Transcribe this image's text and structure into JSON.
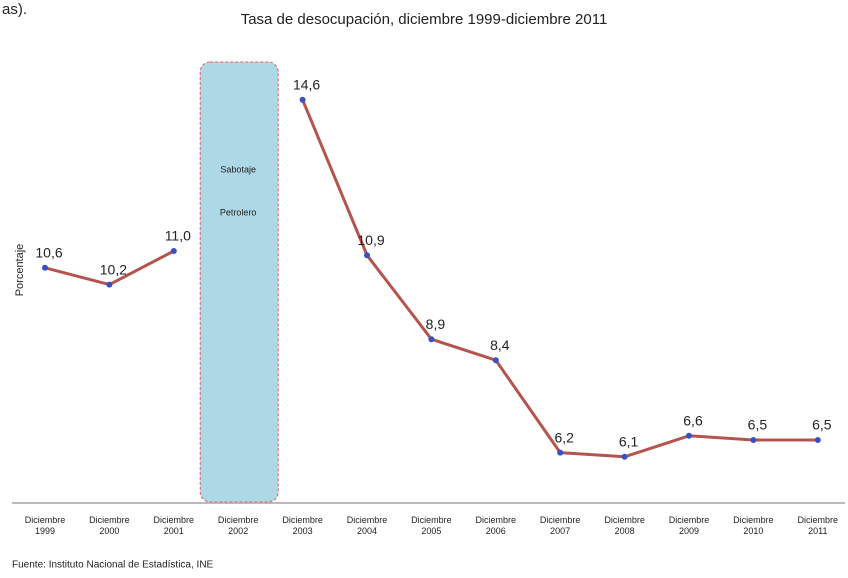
{
  "chart_data": {
    "type": "line",
    "fragment": "as).",
    "title": "Tasa de desocupación, diciembre 1999-diciembre 2011",
    "y_label": "Porcentaje",
    "source": "Fuente: Instituto Nacional de Estadística, INE",
    "annotation": {
      "category": "Diciembre 2002",
      "lines": [
        "Sabotaje",
        "Petrolero"
      ]
    },
    "categories": [
      "Diciembre 1999",
      "Diciembre 2000",
      "Diciembre 2001",
      "Diciembre 2002",
      "Diciembre 2003",
      "Diciembre 2004",
      "Diciembre 2005",
      "Diciembre 2006",
      "Diciembre 2007",
      "Diciembre 2008",
      "Diciembre 2009",
      "Diciembre 2010",
      "Diciembre 2011"
    ],
    "series": [
      {
        "name": "Tasa de desocupación",
        "color": "#b5544f",
        "marker_color": "#3b4fc4",
        "values": [
          10.6,
          10.2,
          11.0,
          null,
          14.6,
          10.9,
          8.9,
          8.4,
          6.2,
          6.1,
          6.6,
          6.5,
          6.5
        ],
        "value_labels": [
          "10,6",
          "10,2",
          "11,0",
          null,
          "14,6",
          "10,9",
          "8,9",
          "8,4",
          "6,2",
          "6,1",
          "6,6",
          "6,5",
          "6,5"
        ]
      }
    ],
    "ylim": [
      5,
      15
    ]
  }
}
